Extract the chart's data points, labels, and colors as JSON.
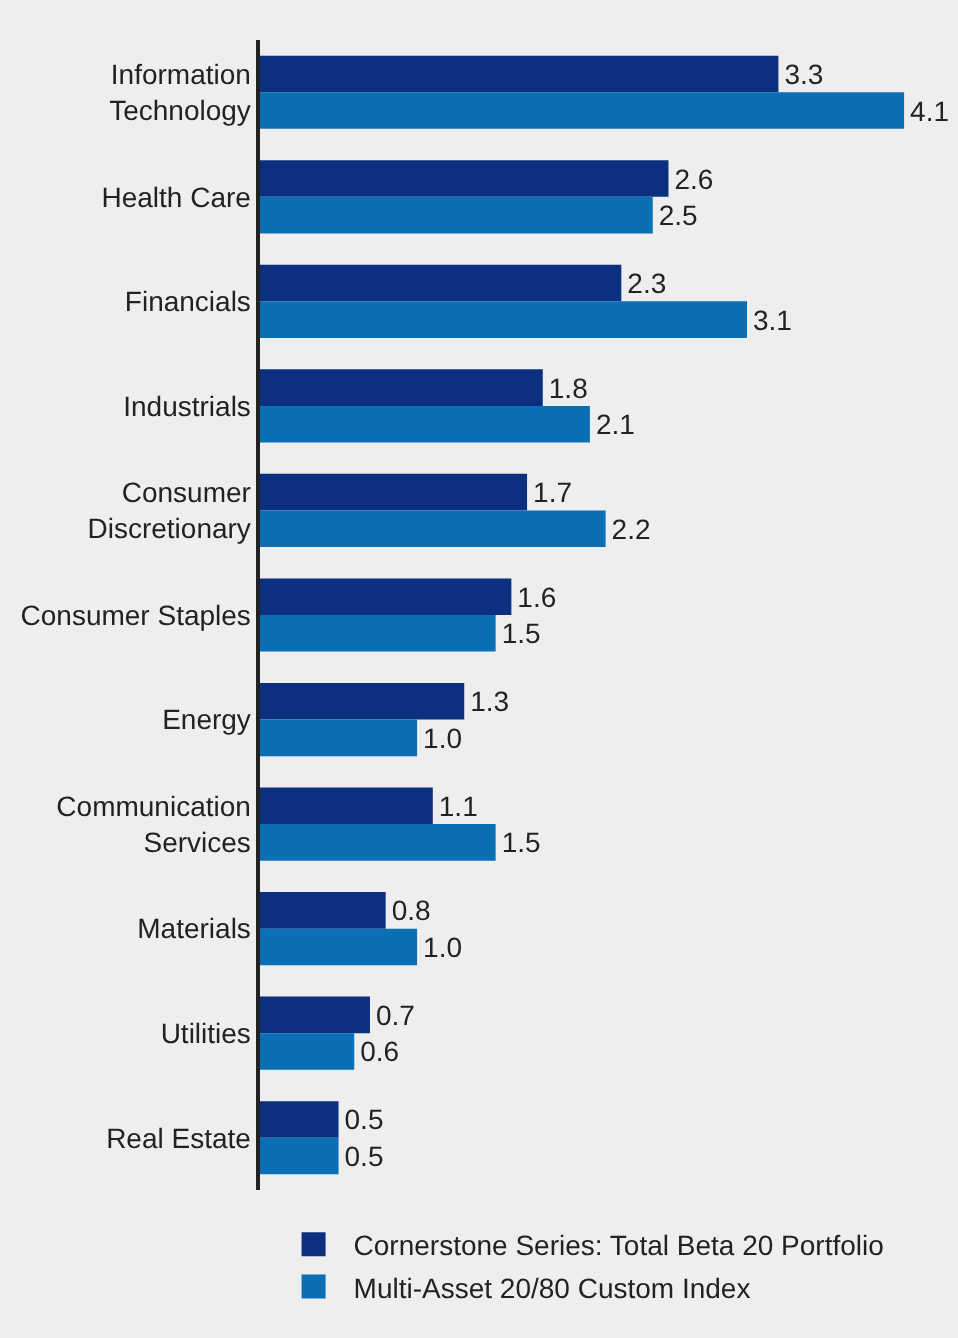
{
  "chart_data": {
    "type": "bar",
    "orientation": "horizontal",
    "tick_labels": "y",
    "grid": false,
    "legend": "bottom",
    "categories": [
      "Information\nTechnology",
      "Health Care",
      "Financials",
      "Industrials",
      "Consumer\nDiscretionary",
      "Consumer Staples",
      "Energy",
      "Communication\nServices",
      "Materials",
      "Utilities",
      "Real Estate"
    ],
    "series": [
      {
        "name": "Cornerstone Series: Total Beta 20 Portfolio",
        "color": "#0d2f7f",
        "values": [
          3.3,
          2.6,
          2.3,
          1.8,
          1.7,
          1.6,
          1.3,
          1.1,
          0.8,
          0.7,
          0.5
        ],
        "value_labels": [
          "3.3",
          "2.6",
          "2.3",
          "1.8",
          "1.7",
          "1.6",
          "1.3",
          "1.1",
          "0.8",
          "0.7",
          "0.5"
        ]
      },
      {
        "name": "Multi-Asset 20/80 Custom Index",
        "color": "#0a6fb5",
        "values": [
          4.1,
          2.5,
          3.1,
          2.1,
          2.2,
          1.5,
          1.0,
          1.5,
          1.0,
          0.6,
          0.5
        ],
        "value_labels": [
          "4.1",
          "2.5",
          "3.1",
          "2.1",
          "2.2",
          "1.5",
          "1.0",
          "1.5",
          "1.0",
          "0.6",
          "0.5"
        ]
      }
    ]
  }
}
